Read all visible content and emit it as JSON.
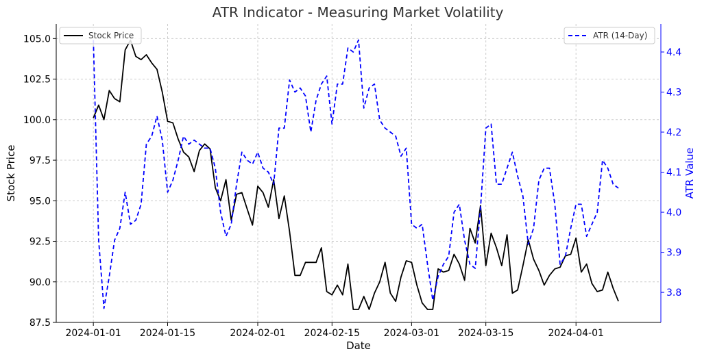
{
  "chart_data": {
    "type": "line",
    "title": "ATR Indicator - Measuring Market Volatility",
    "xlabel": "Date",
    "ylabel_left": "Stock Price",
    "ylabel_right": "ATR Value",
    "x_range": [
      "2023-12-25",
      "2024-04-17"
    ],
    "y_left_range": [
      87.5,
      105.9
    ],
    "y_right_range": [
      3.725,
      4.47
    ],
    "x_ticks": [
      "2024-01-01",
      "2024-01-15",
      "2024-02-01",
      "2024-02-15",
      "2024-03-01",
      "2024-03-15",
      "2024-04-01"
    ],
    "y_left_ticks": [
      "87.5",
      "90.0",
      "92.5",
      "95.0",
      "97.5",
      "100.0",
      "102.5",
      "105.0"
    ],
    "y_right_ticks": [
      "3.8",
      "3.9",
      "4.0",
      "4.1",
      "4.2",
      "4.3",
      "4.4"
    ],
    "grid": true,
    "legend": {
      "left": "top-left",
      "right": "top-right"
    },
    "colors": {
      "price": "#000000",
      "atr": "#0000ff",
      "grid": "#cccccc",
      "title": "#333333"
    },
    "start_date": "2024-01-01",
    "series": [
      {
        "name": "Stock Price",
        "axis": "left",
        "style": "solid",
        "values": [
          100.1,
          100.9,
          100.0,
          101.8,
          101.3,
          101.1,
          104.3,
          104.9,
          103.9,
          103.7,
          104.0,
          103.5,
          103.1,
          101.7,
          99.9,
          99.8,
          98.8,
          98.0,
          97.7,
          96.8,
          98.1,
          98.5,
          98.2,
          95.8,
          95.0,
          96.3,
          93.8,
          95.4,
          95.5,
          94.5,
          93.5,
          95.9,
          95.5,
          94.6,
          96.3,
          93.9,
          95.3,
          93.1,
          90.4,
          90.4,
          91.2,
          91.2,
          91.2,
          92.1,
          89.4,
          89.2,
          89.8,
          89.2,
          91.1,
          88.3,
          88.3,
          89.1,
          88.3,
          89.3,
          90.0,
          91.2,
          89.3,
          88.8,
          90.3,
          91.3,
          91.2,
          89.8,
          88.7,
          88.3,
          88.3,
          90.8,
          90.6,
          90.7,
          91.7,
          91.1,
          90.1,
          93.3,
          92.4,
          94.7,
          91.0,
          93.0,
          92.1,
          91.0,
          92.9,
          89.3,
          89.5,
          91.0,
          92.6,
          91.4,
          90.7,
          89.8,
          90.4,
          90.8,
          90.9,
          91.6,
          91.7,
          92.7,
          90.6,
          91.1,
          89.9,
          89.4,
          89.5,
          90.6,
          89.6,
          88.8
        ]
      },
      {
        "name": "ATR (14-Day)",
        "axis": "right",
        "style": "dashed",
        "values": [
          4.43,
          3.93,
          3.76,
          3.84,
          3.93,
          3.96,
          4.05,
          3.97,
          3.98,
          4.02,
          4.17,
          4.19,
          4.24,
          4.18,
          4.05,
          4.08,
          4.13,
          4.19,
          4.17,
          4.18,
          4.17,
          4.16,
          4.16,
          4.11,
          4.0,
          3.94,
          3.97,
          4.07,
          4.15,
          4.13,
          4.12,
          4.15,
          4.11,
          4.1,
          4.07,
          4.21,
          4.21,
          4.33,
          4.3,
          4.31,
          4.29,
          4.2,
          4.28,
          4.32,
          4.34,
          4.22,
          4.32,
          4.32,
          4.41,
          4.4,
          4.43,
          4.26,
          4.31,
          4.32,
          4.23,
          4.21,
          4.2,
          4.19,
          4.14,
          4.16,
          3.97,
          3.96,
          3.97,
          3.87,
          3.78,
          3.84,
          3.87,
          3.89,
          4.0,
          4.02,
          3.93,
          3.87,
          3.86,
          4.01,
          4.21,
          4.22,
          4.07,
          4.07,
          4.11,
          4.15,
          4.09,
          4.04,
          3.92,
          3.96,
          4.08,
          4.11,
          4.11,
          4.02,
          3.87,
          3.89,
          3.96,
          4.02,
          4.02,
          3.94,
          3.97,
          4.0,
          4.13,
          4.11,
          4.07,
          4.06
        ]
      }
    ]
  }
}
